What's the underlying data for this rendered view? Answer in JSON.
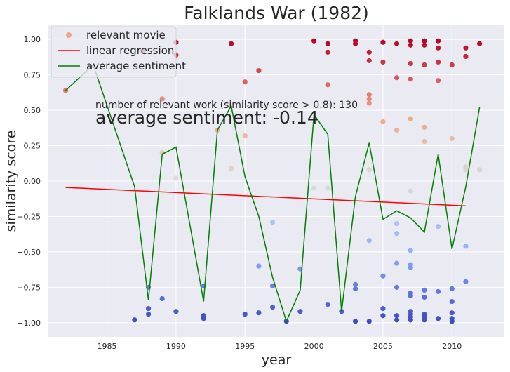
{
  "chart_data": {
    "type": "scatter",
    "title": "Falklands War (1982)",
    "xlabel": "year",
    "ylabel": "similarity score",
    "xlim": [
      1980.7,
      2013.8
    ],
    "ylim": [
      -1.1,
      1.1
    ],
    "xticks": [
      "1985",
      "1990",
      "1995",
      "2000",
      "2005",
      "2010"
    ],
    "yticks": [
      "1.00",
      "0.75",
      "0.50",
      "0.25",
      "0.00",
      "−0.25",
      "−0.50",
      "−0.75",
      "−1.00"
    ],
    "xtick_values": [
      1985,
      1990,
      1995,
      2000,
      2005,
      2010
    ],
    "ytick_values": [
      1.0,
      0.75,
      0.5,
      0.25,
      0.0,
      -0.25,
      -0.5,
      -0.75,
      -1.0
    ],
    "grid": true,
    "legend_position": "top-left",
    "legend": [
      "relevant movie",
      "linear regression",
      "average sentiment"
    ],
    "annotations": [
      "number of relevant work (similarity score > 0.8): 130",
      "average sentiment: -0.14"
    ],
    "colors": {
      "background": "#eaeaf2",
      "grid": "#ffffff",
      "regression": "#ff0000",
      "average": "#008000",
      "legend_marker": "#f4a582",
      "colormap_low": "#3b4cc0",
      "colormap_mid": "#dddcdc",
      "colormap_high": "#b40426"
    },
    "series": [
      {
        "name": "relevant movie",
        "kind": "scatter",
        "points": [
          [
            1982,
            0.64
          ],
          [
            1987,
            -0.98
          ],
          [
            1987.6,
            0.92
          ],
          [
            1988,
            -0.75
          ],
          [
            1988,
            -0.9
          ],
          [
            1988,
            -0.94
          ],
          [
            1989,
            0.58
          ],
          [
            1989,
            0.2
          ],
          [
            1989,
            -0.83
          ],
          [
            1990,
            0.98
          ],
          [
            1990,
            0.89
          ],
          [
            1990,
            0.02
          ],
          [
            1990,
            -0.92
          ],
          [
            1992,
            -0.74
          ],
          [
            1992,
            -0.95
          ],
          [
            1992,
            -0.97
          ],
          [
            1993,
            0.36
          ],
          [
            1994,
            0.97
          ],
          [
            1994,
            0.09
          ],
          [
            1995,
            0.7
          ],
          [
            1995,
            0.32
          ],
          [
            1995,
            -0.94
          ],
          [
            1996,
            0.78
          ],
          [
            1996,
            -0.6
          ],
          [
            1996,
            -0.93
          ],
          [
            1997,
            -0.29
          ],
          [
            1997,
            -0.74
          ],
          [
            1997,
            -0.89
          ],
          [
            1998,
            -0.99
          ],
          [
            1999,
            -0.62
          ],
          [
            1999,
            -0.92
          ],
          [
            2000,
            0.99
          ],
          [
            2000,
            -0.05
          ],
          [
            2001,
            0.97
          ],
          [
            2001,
            0.91
          ],
          [
            2001,
            0.68
          ],
          [
            2001,
            -0.05
          ],
          [
            2001,
            -0.87
          ],
          [
            2002,
            -0.92
          ],
          [
            2003,
            0.99
          ],
          [
            2003,
            0.97
          ],
          [
            2003,
            -0.73
          ],
          [
            2003,
            -0.76
          ],
          [
            2003,
            -0.99
          ],
          [
            2004,
            0.91
          ],
          [
            2004,
            0.85
          ],
          [
            2004,
            0.61
          ],
          [
            2004,
            0.58
          ],
          [
            2004,
            0.55
          ],
          [
            2004,
            0.08
          ],
          [
            2004,
            -0.42
          ],
          [
            2004,
            -0.99
          ],
          [
            2005,
            0.98
          ],
          [
            2005,
            0.84
          ],
          [
            2005,
            0.42
          ],
          [
            2005,
            -0.67
          ],
          [
            2005,
            -0.9
          ],
          [
            2005,
            -0.95
          ],
          [
            2006,
            0.97
          ],
          [
            2006,
            0.73
          ],
          [
            2006,
            0.36
          ],
          [
            2006,
            -0.3
          ],
          [
            2006,
            -0.37
          ],
          [
            2006,
            -0.58
          ],
          [
            2006,
            -0.75
          ],
          [
            2006,
            -0.95
          ],
          [
            2006,
            -0.98
          ],
          [
            2007,
            0.99
          ],
          [
            2007,
            0.96
          ],
          [
            2007,
            0.83
          ],
          [
            2007,
            0.72
          ],
          [
            2007,
            0.44
          ],
          [
            2007,
            -0.07
          ],
          [
            2007,
            -0.49
          ],
          [
            2007,
            -0.59
          ],
          [
            2007,
            -0.61
          ],
          [
            2007,
            -0.79
          ],
          [
            2007,
            -0.81
          ],
          [
            2007,
            -0.92
          ],
          [
            2007,
            -0.94
          ],
          [
            2007,
            -0.96
          ],
          [
            2007,
            -0.98
          ],
          [
            2008,
            0.99
          ],
          [
            2008,
            0.96
          ],
          [
            2008,
            0.82
          ],
          [
            2008,
            0.38
          ],
          [
            2008,
            0.28
          ],
          [
            2008,
            -0.77
          ],
          [
            2008,
            -0.82
          ],
          [
            2008,
            -0.94
          ],
          [
            2008,
            -0.96
          ],
          [
            2008,
            -0.98
          ],
          [
            2009,
            0.99
          ],
          [
            2009,
            0.94
          ],
          [
            2009,
            0.84
          ],
          [
            2009,
            0.71
          ],
          [
            2009,
            -0.32
          ],
          [
            2009,
            -0.78
          ],
          [
            2009,
            -0.97
          ],
          [
            2010,
            0.82
          ],
          [
            2010,
            0.3
          ],
          [
            2010,
            -0.76
          ],
          [
            2010,
            -0.85
          ],
          [
            2010,
            -0.93
          ],
          [
            2010,
            -0.97
          ],
          [
            2010,
            -0.99
          ],
          [
            2011,
            0.94
          ],
          [
            2011,
            0.88
          ],
          [
            2011,
            0.1
          ],
          [
            2011,
            0.08
          ],
          [
            2011,
            -0.46
          ],
          [
            2011,
            -0.71
          ],
          [
            2012,
            0.97
          ],
          [
            2012,
            0.08
          ]
        ]
      },
      {
        "name": "linear regression",
        "kind": "line",
        "x": [
          1982,
          2011
        ],
        "y": [
          -0.045,
          -0.175
        ]
      },
      {
        "name": "average sentiment",
        "kind": "line",
        "x": [
          1982,
          1984,
          1987,
          1988,
          1989,
          1990,
          1992,
          1993,
          1994,
          1995,
          1996,
          1997,
          1998,
          1999,
          2000,
          2001,
          2002,
          2003,
          2004,
          2005,
          2006,
          2007,
          2008,
          2009,
          2010,
          2011,
          2012
        ],
        "y": [
          0.64,
          0.82,
          -0.04,
          -0.84,
          0.19,
          0.24,
          -0.85,
          0.36,
          0.53,
          0.03,
          -0.25,
          -0.68,
          -0.99,
          -0.77,
          0.47,
          0.33,
          -0.92,
          -0.11,
          0.27,
          -0.27,
          -0.21,
          -0.26,
          -0.36,
          0.19,
          -0.48,
          -0.04,
          0.52
        ]
      }
    ]
  }
}
